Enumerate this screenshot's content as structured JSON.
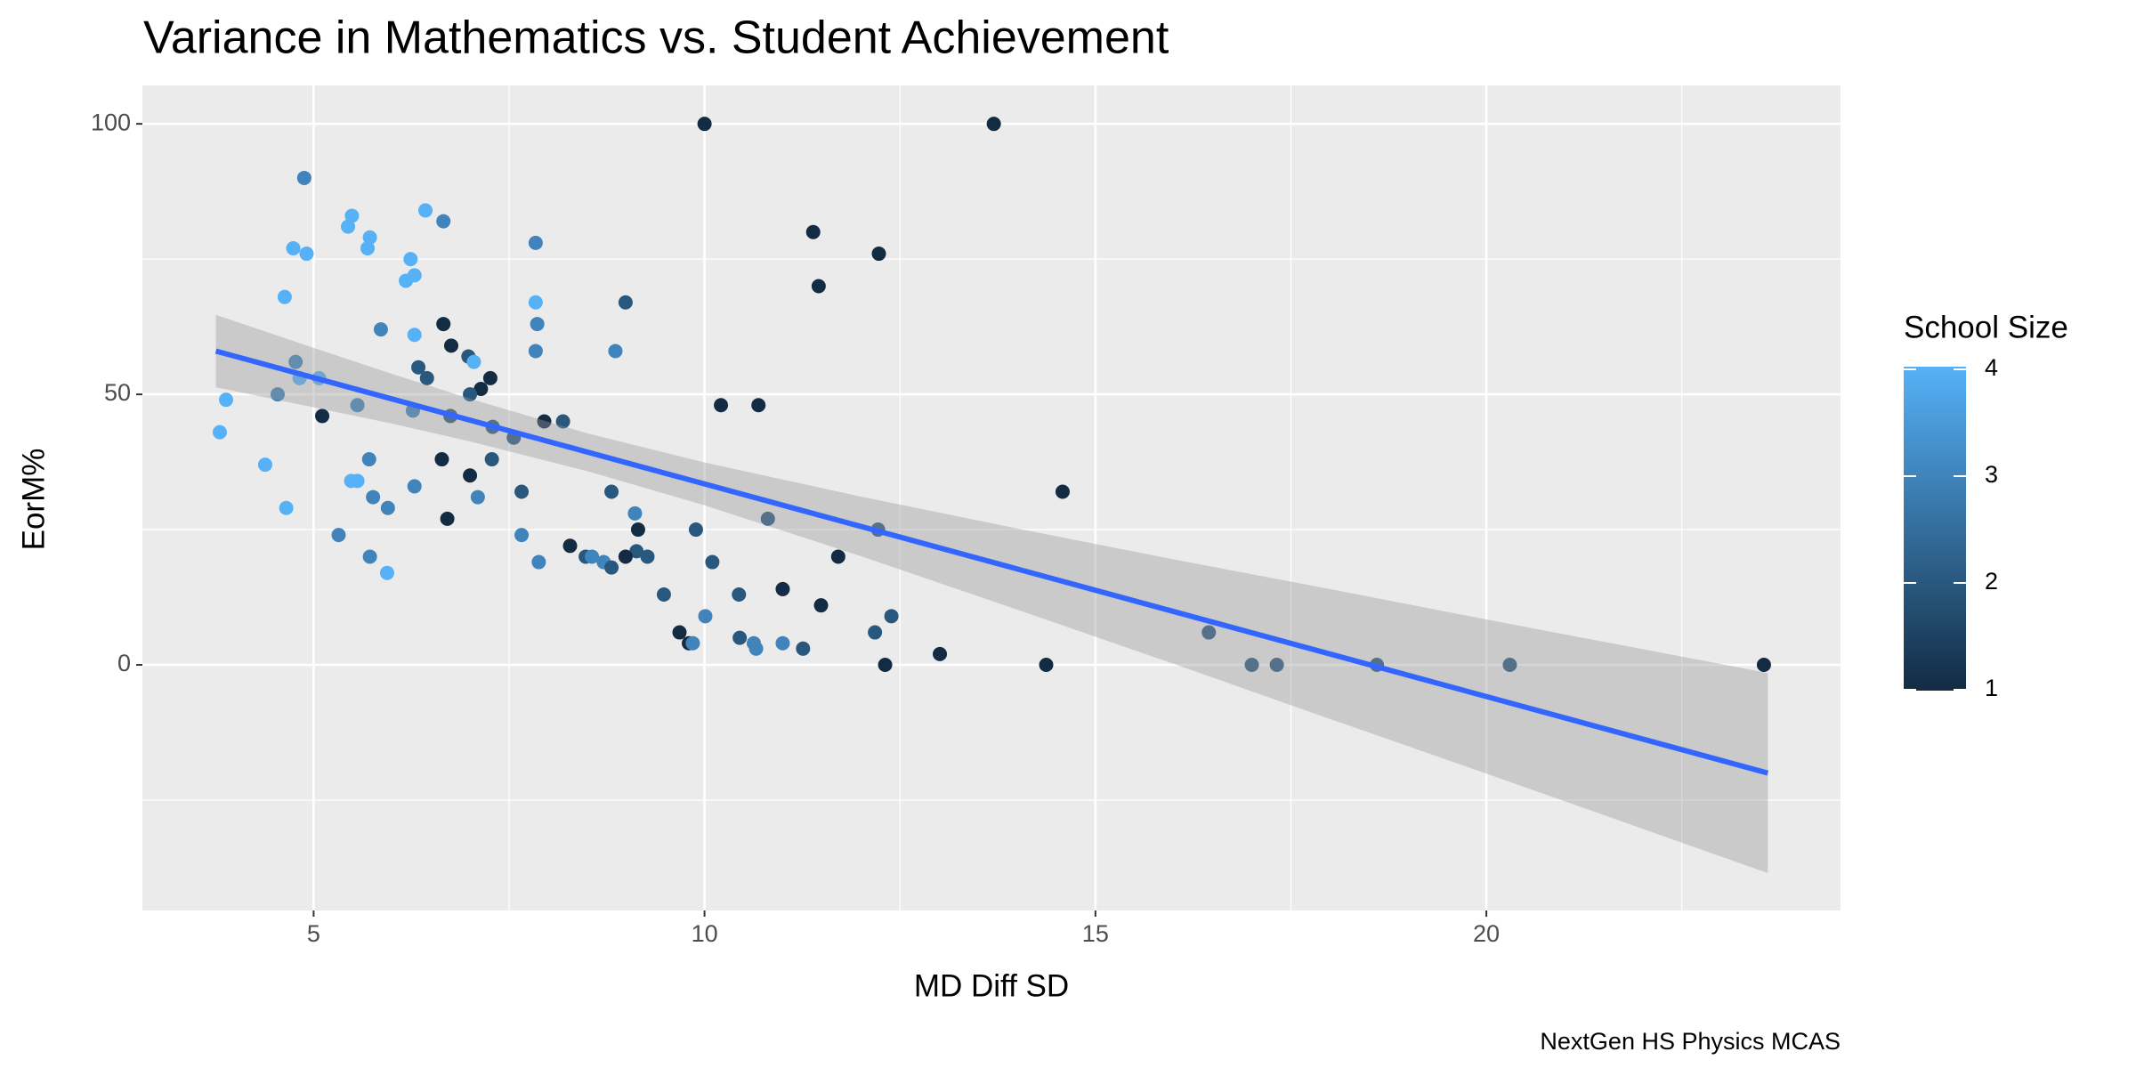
{
  "chart_data": {
    "type": "scatter",
    "title": "Variance in Mathematics vs. Student Achievement",
    "x_label": "MD Diff SD",
    "y_label": "EorM%",
    "caption": "NextGen HS Physics MCAS",
    "color_title": "School Size",
    "color_low": "#132B43",
    "color_high": "#56B1F7",
    "color_lim": [
      1,
      4
    ],
    "color_ticks": [
      1,
      2,
      3,
      4
    ],
    "xlim": [
      2.81,
      24.53
    ],
    "ylim": [
      -45.4,
      107.1
    ],
    "xticks": [
      5,
      10,
      15,
      20
    ],
    "yticks": [
      0,
      50,
      100
    ],
    "xminor": [
      7.5,
      12.5,
      17.5,
      22.5
    ],
    "yminor": [
      -25,
      25,
      75
    ],
    "grid": true,
    "x": [
      10.0,
      13.7,
      4.88,
      6.43,
      5.49,
      5.44,
      6.66,
      4.74,
      4.91,
      5.72,
      5.69,
      11.39,
      7.84,
      12.23,
      6.24,
      6.29,
      6.18,
      11.46,
      4.63,
      8.99,
      7.84,
      6.66,
      7.86,
      5.86,
      6.29,
      6.76,
      8.86,
      7.84,
      6.98,
      7.05,
      4.77,
      6.34,
      7.26,
      7.14,
      4.82,
      5.07,
      6.45,
      4.54,
      7.0,
      10.21,
      10.69,
      5.56,
      6.27,
      6.75,
      5.11,
      7.95,
      8.19,
      7.29,
      7.56,
      3.8,
      3.88,
      4.38,
      6.64,
      7.28,
      5.71,
      7.0,
      5.48,
      5.56,
      6.29,
      14.58,
      7.66,
      8.81,
      7.1,
      5.76,
      5.95,
      4.65,
      9.11,
      10.81,
      6.71,
      9.15,
      9.89,
      12.22,
      5.32,
      7.66,
      8.28,
      9.13,
      9.27,
      5.72,
      8.48,
      8.56,
      8.99,
      11.71,
      7.88,
      10.1,
      8.71,
      8.81,
      5.94,
      9.48,
      10.44,
      11.0,
      11.49,
      10.01,
      12.39,
      9.68,
      12.18,
      16.45,
      10.45,
      10.63,
      9.8,
      9.85,
      10.66,
      11.0,
      11.26,
      13.01,
      12.31,
      14.37,
      17.0,
      17.32,
      18.6,
      20.3,
      23.55
    ],
    "values": [
      100,
      100,
      90,
      84,
      83,
      81,
      82,
      77,
      76,
      79,
      77,
      80,
      78,
      76,
      75,
      72,
      71,
      70,
      68,
      67,
      67,
      63,
      63,
      62,
      61,
      59,
      58,
      58,
      57,
      56,
      56,
      55,
      53,
      51,
      53,
      53,
      53,
      50,
      50,
      48,
      48,
      48,
      47,
      46,
      46,
      45,
      45,
      44,
      42,
      43,
      49,
      37,
      38,
      38,
      38,
      35,
      34,
      34,
      33,
      32,
      32,
      32,
      31,
      31,
      29,
      29,
      28,
      27,
      27,
      25,
      25,
      25,
      24,
      24,
      22,
      21,
      20,
      20,
      20,
      20,
      20,
      20,
      19,
      19,
      19,
      18,
      17,
      13,
      13,
      14,
      11,
      9,
      9,
      6,
      6,
      6,
      5,
      4,
      4,
      4,
      3,
      4,
      3,
      2,
      0,
      0,
      0,
      0,
      0,
      0,
      0
    ],
    "school_size": [
      1,
      1,
      3,
      4,
      4,
      4,
      3,
      4,
      4,
      4,
      4,
      1,
      3,
      1,
      4,
      4,
      4,
      1,
      4,
      2,
      4,
      1,
      3,
      3,
      4,
      1,
      3,
      3,
      2,
      4,
      3,
      2,
      1,
      1,
      4,
      4,
      2,
      3,
      2,
      1,
      1,
      3,
      3,
      2,
      1,
      1,
      2,
      2,
      2,
      4,
      4,
      4,
      1,
      2,
      3,
      1,
      4,
      4,
      3,
      1,
      2,
      2,
      3,
      3,
      3,
      4,
      3,
      2,
      1,
      1,
      2,
      2,
      3,
      3,
      1,
      2,
      2,
      3,
      2,
      3,
      1,
      1,
      3,
      2,
      3,
      2,
      4,
      2,
      2,
      1,
      1,
      3,
      2,
      1,
      2,
      2,
      2,
      3,
      1,
      3,
      3,
      3,
      2,
      1,
      1,
      1,
      2,
      2,
      2,
      2,
      1
    ],
    "fit": {
      "color": "#3366FF",
      "x": [
        3.75,
        23.6
      ],
      "values": [
        58,
        -20
      ]
    },
    "band": {
      "color": "#999999",
      "x": [
        3.75,
        5,
        6,
        7,
        8.5,
        10,
        12,
        14,
        16,
        18,
        20,
        22,
        23.6
      ],
      "lower": [
        51.3,
        47.6,
        44.6,
        41.3,
        35.8,
        29.5,
        20.1,
        10.2,
        0.2,
        -10.0,
        -20.1,
        -30.3,
        -38.5
      ],
      "upper": [
        64.7,
        58.6,
        53.8,
        49.2,
        42.8,
        37.4,
        31.1,
        25.2,
        19.5,
        14.0,
        8.4,
        2.9,
        -1.5
      ]
    }
  }
}
